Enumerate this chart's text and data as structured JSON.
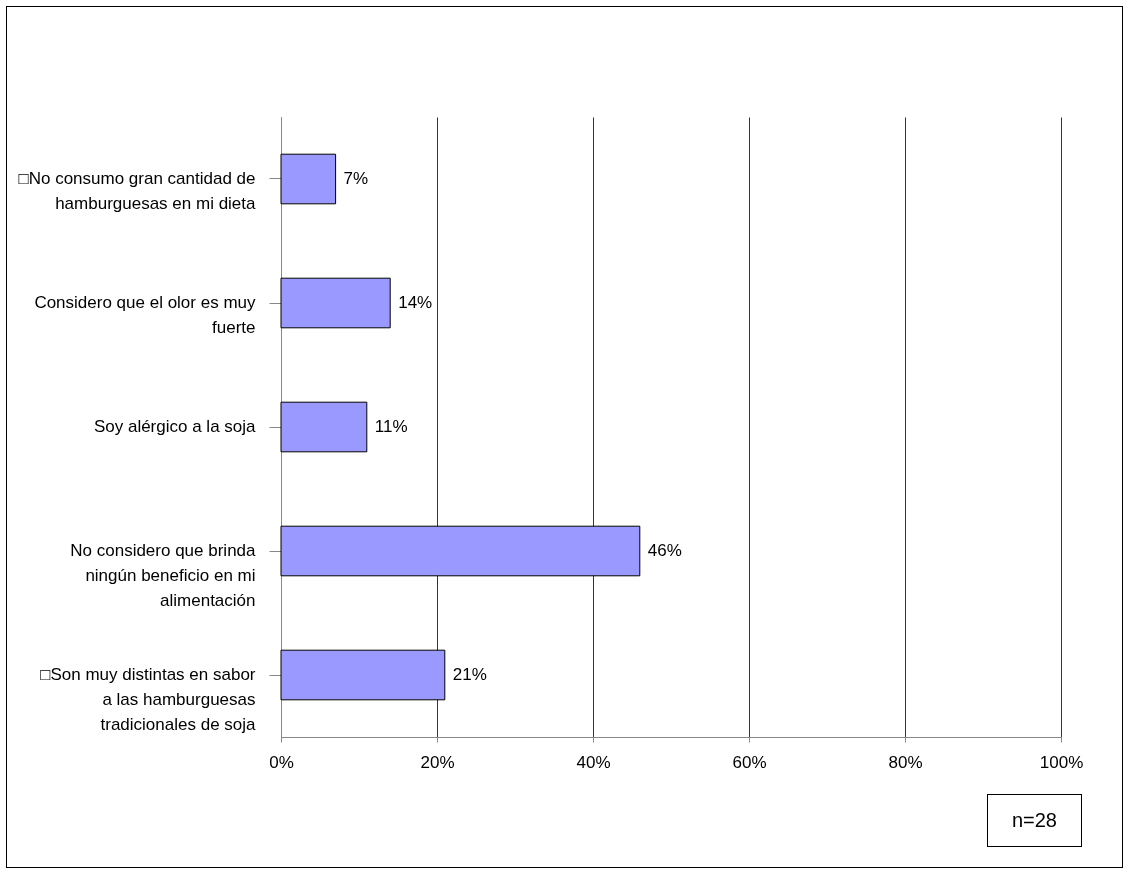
{
  "chart_data": {
    "type": "bar",
    "orientation": "horizontal",
    "categories": [
      "□No consumo gran cantidad de hamburguesas en mi dieta",
      "Considero que el olor es muy fuerte",
      "Soy alérgico a la soja",
      "No considero que brinda ningún beneficio en mi alimentación",
      "□Son muy distintas en sabor a las hamburguesas tradicionales de soja"
    ],
    "values": [
      7,
      14,
      11,
      46,
      21
    ],
    "value_labels": [
      "7%",
      "14%",
      "11%",
      "46%",
      "21%"
    ],
    "color": "#9999ff",
    "xlim": [
      0,
      100
    ],
    "xticks": [
      {
        "value": 0,
        "label": "0%"
      },
      {
        "value": 20,
        "label": "20%"
      },
      {
        "value": 40,
        "label": "40%"
      },
      {
        "value": 60,
        "label": "60%"
      },
      {
        "value": 80,
        "label": "80%"
      },
      {
        "value": 100,
        "label": "100%"
      }
    ],
    "grid": "x",
    "annotations": [
      "n=28"
    ]
  }
}
